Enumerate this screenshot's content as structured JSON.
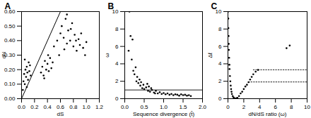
{
  "chart_data": [
    {
      "type": "scatter",
      "title": "A",
      "x_label": "dS",
      "y_label": "dN",
      "color": "#000000",
      "marker": "circle",
      "xlim": [
        0,
        1.2
      ],
      "xticks": [
        0,
        0.2,
        0.4,
        0.6,
        0.8,
        1,
        1.2
      ],
      "ylim": [
        0,
        0.6
      ],
      "yticks": [
        0,
        0.1,
        0.2,
        0.3,
        0.4,
        0.5,
        0.6
      ],
      "reference_line": {
        "x": [
          0,
          0.6
        ],
        "y": [
          0,
          0.6
        ],
        "line_style": "solid"
      },
      "x": [
        0.02,
        0.03,
        0.04,
        0.05,
        0.06,
        0.07,
        0.08,
        0.09,
        0.1,
        0.11,
        0.12,
        0.14,
        0.05,
        0.08,
        0.13,
        0.3,
        0.32,
        0.34,
        0.36,
        0.38,
        0.4,
        0.42,
        0.44,
        0.46,
        0.35,
        0.41,
        0.48,
        0.5,
        0.55,
        0.6,
        0.62,
        0.65,
        0.68,
        0.7,
        0.72,
        0.75,
        0.78,
        0.8,
        0.82,
        0.85,
        0.88,
        0.9,
        0.92,
        0.95,
        0.98,
        1.0,
        0.7,
        0.76,
        0.84,
        0.66,
        0.58
      ],
      "y": [
        0.06,
        0.12,
        0.17,
        0.1,
        0.2,
        0.15,
        0.22,
        0.18,
        0.13,
        0.25,
        0.19,
        0.16,
        0.27,
        0.08,
        0.23,
        0.18,
        0.22,
        0.16,
        0.26,
        0.2,
        0.24,
        0.19,
        0.28,
        0.21,
        0.14,
        0.3,
        0.25,
        0.36,
        0.4,
        0.45,
        0.5,
        0.42,
        0.55,
        0.38,
        0.47,
        0.4,
        0.52,
        0.36,
        0.44,
        0.33,
        0.41,
        0.37,
        0.45,
        0.35,
        0.3,
        0.39,
        0.58,
        0.48,
        0.4,
        0.34,
        0.3
      ]
    },
    {
      "type": "scatter",
      "title": "B",
      "x_label": "Sequence divergence (t̂)",
      "y_label": "ω",
      "color": "#000000",
      "marker": "circle",
      "xlim": [
        0,
        2
      ],
      "xticks": [
        0,
        0.5,
        1,
        1.5,
        2
      ],
      "ylim": [
        0,
        10
      ],
      "yticks": [
        0,
        2,
        4,
        6,
        8,
        10
      ],
      "hlines": [
        {
          "y": 1,
          "x": [
            0,
            2
          ],
          "line_style": "solid"
        }
      ],
      "x": [
        0.1,
        0.12,
        0.15,
        0.18,
        0.2,
        0.22,
        0.25,
        0.28,
        0.3,
        0.32,
        0.35,
        0.38,
        0.4,
        0.42,
        0.45,
        0.48,
        0.5,
        0.55,
        0.6,
        0.62,
        0.65,
        0.7,
        0.75,
        0.8,
        0.85,
        0.9,
        0.95,
        1.0,
        1.05,
        1.1,
        1.15,
        1.2,
        1.25,
        1.3,
        1.35,
        1.4,
        1.45,
        1.5,
        1.55,
        1.6,
        1.65,
        1.7,
        0.58,
        0.68,
        0.78
      ],
      "y": [
        5.5,
        10,
        7.2,
        4.5,
        6.8,
        3.2,
        2.8,
        3.6,
        2.0,
        2.5,
        1.8,
        2.2,
        1.5,
        1.9,
        1.2,
        1.6,
        1.1,
        1.3,
        0.9,
        1.4,
        0.8,
        1.0,
        0.7,
        0.9,
        0.6,
        0.75,
        0.55,
        0.65,
        0.5,
        0.6,
        0.45,
        0.55,
        0.4,
        0.5,
        0.45,
        0.35,
        0.5,
        0.4,
        0.45,
        0.35,
        0.4,
        0.3,
        1.7,
        1.2,
        0.6
      ]
    },
    {
      "type": "scatter",
      "title": "C",
      "x_label": "dN/dS ratio (ω)",
      "y_label": "Δℓ",
      "color": "#000000",
      "marker": "circle",
      "xlim": [
        0,
        10
      ],
      "xticks": [
        0,
        2,
        4,
        6,
        8,
        10
      ],
      "ylim": [
        0,
        10
      ],
      "yticks": [
        0,
        2,
        4,
        6,
        8,
        10
      ],
      "hlines": [
        {
          "y": 1.92,
          "x": [
            2.6,
            10
          ],
          "line_style": "dotted"
        },
        {
          "y": 3.32,
          "x": [
            3.2,
            10
          ],
          "line_style": "dotted"
        }
      ],
      "x": [
        0.02,
        0.04,
        0.06,
        0.08,
        0.1,
        0.12,
        0.15,
        0.18,
        0.2,
        0.25,
        0.3,
        0.35,
        0.4,
        0.45,
        0.5,
        0.6,
        0.7,
        0.8,
        0.9,
        1.0,
        1.1,
        1.2,
        1.4,
        1.6,
        1.8,
        2.0,
        2.2,
        2.4,
        2.6,
        2.8,
        3.0,
        3.2,
        3.5,
        3.8,
        7.4,
        7.8
      ],
      "y": [
        10,
        9.2,
        8.1,
        7.2,
        6.3,
        5.6,
        4.7,
        3.9,
        3.4,
        2.6,
        2.0,
        1.5,
        1.1,
        0.8,
        0.55,
        0.3,
        0.15,
        0.05,
        0.02,
        0.0,
        0.05,
        0.1,
        0.3,
        0.6,
        0.8,
        1.1,
        1.4,
        1.6,
        1.9,
        2.2,
        2.5,
        2.8,
        3.1,
        3.3,
        5.8,
        6.1
      ]
    }
  ]
}
